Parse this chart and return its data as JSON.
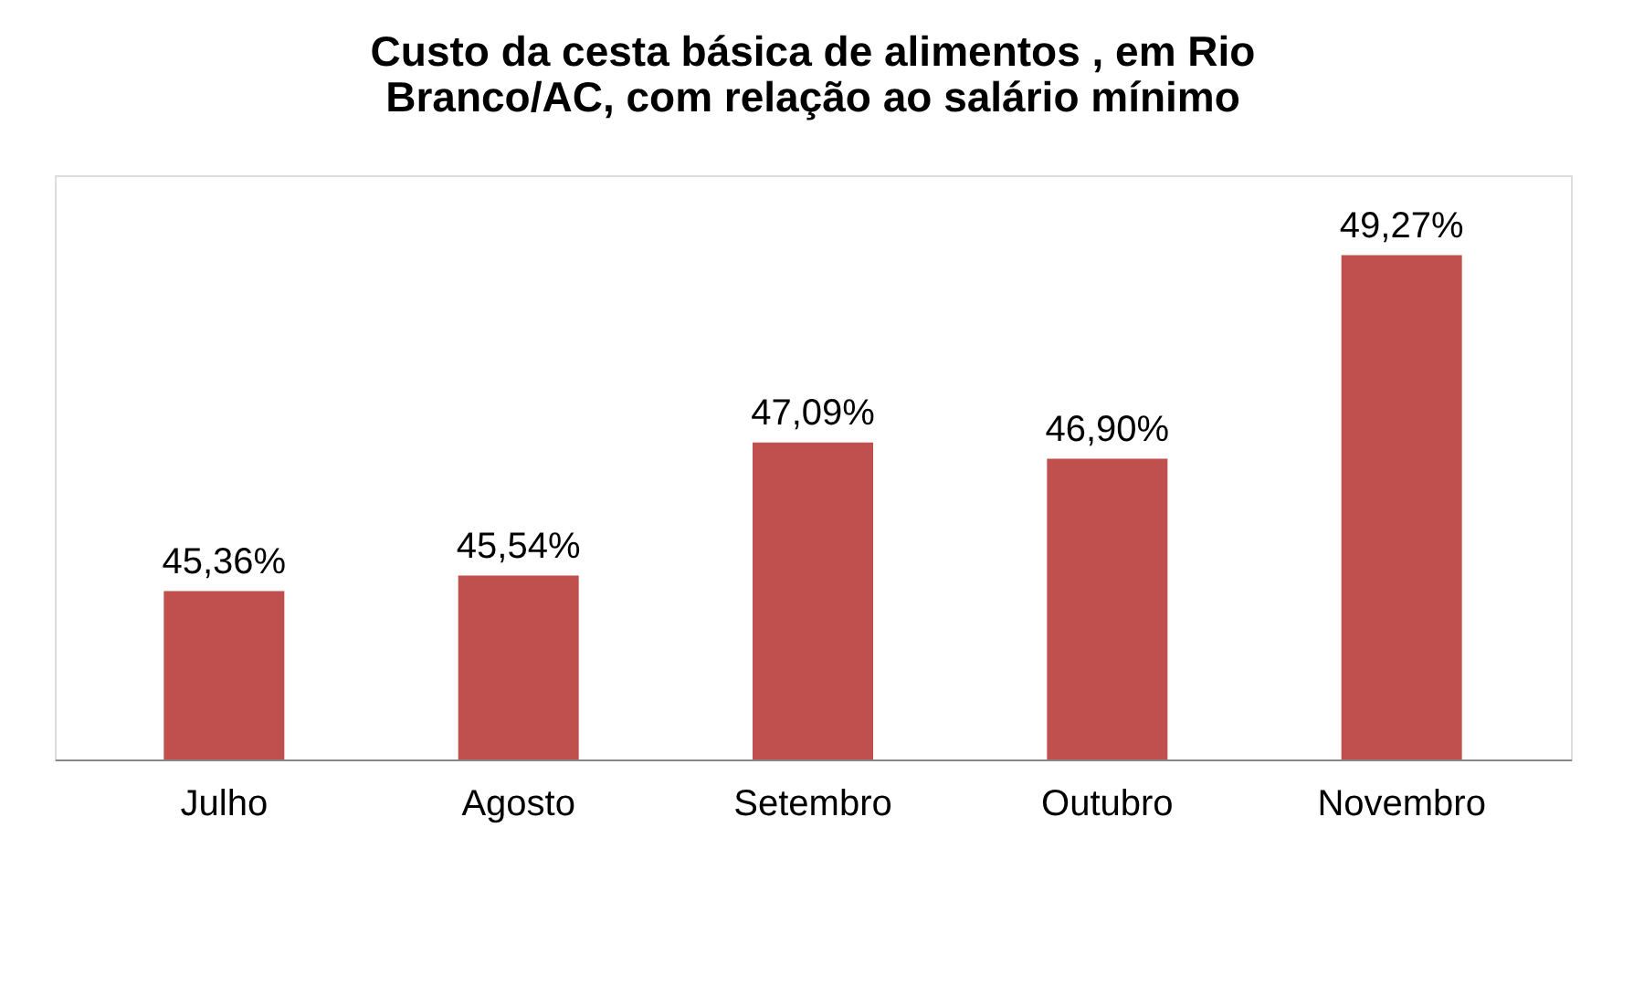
{
  "chart_data": {
    "type": "bar",
    "title": [
      "Custo da cesta básica de alimentos , em Rio",
      "Branco/AC, com relação ao salário mínimo"
    ],
    "categories": [
      "Julho",
      "Agosto",
      "Setembro",
      "Outubro",
      "Novembro"
    ],
    "values": [
      45.36,
      45.54,
      47.09,
      46.9,
      49.27
    ],
    "value_labels": [
      "45,36%",
      "45,54%",
      "47,09%",
      "46,90%",
      "49,27%"
    ],
    "color": "#c0504d",
    "ylim": [
      43.4,
      50.2
    ],
    "tick_labels": "x",
    "grid": false
  }
}
